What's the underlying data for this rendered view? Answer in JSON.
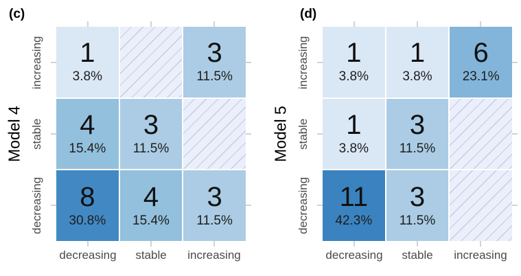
{
  "figure": {
    "background": "#ffffff",
    "number_color": "#111111",
    "axis_label_color": "#4a4a4a",
    "tick_color": "#d2d2d2",
    "empty_cell_color": "#eaeffb"
  },
  "color_scale": {
    "1": "#dae7f5",
    "3": "#abcce4",
    "4": "#93c0dc",
    "6": "#82b5d9",
    "8": "#4289c4",
    "11": "#3a83c0"
  },
  "chart_data": [
    {
      "type": "heatmap",
      "panel_label": "(c)",
      "ylabel": "Model 4",
      "x_categories": [
        "decreasing",
        "stable",
        "increasing"
      ],
      "y_categories_top_to_bottom": [
        "increasing",
        "stable",
        "decreasing"
      ],
      "legend_position": "none",
      "grid": "off",
      "cells": [
        [
          {
            "count": 1,
            "percent": "3.8%"
          },
          null,
          {
            "count": 3,
            "percent": "11.5%"
          }
        ],
        [
          {
            "count": 4,
            "percent": "15.4%"
          },
          {
            "count": 3,
            "percent": "11.5%"
          },
          null
        ],
        [
          {
            "count": 8,
            "percent": "30.8%"
          },
          {
            "count": 4,
            "percent": "15.4%"
          },
          {
            "count": 3,
            "percent": "11.5%"
          }
        ]
      ]
    },
    {
      "type": "heatmap",
      "panel_label": "(d)",
      "ylabel": "Model 5",
      "x_categories": [
        "decreasing",
        "stable",
        "increasing"
      ],
      "y_categories_top_to_bottom": [
        "increasing",
        "stable",
        "decreasing"
      ],
      "legend_position": "none",
      "grid": "off",
      "cells": [
        [
          {
            "count": 1,
            "percent": "3.8%"
          },
          {
            "count": 1,
            "percent": "3.8%"
          },
          {
            "count": 6,
            "percent": "23.1%"
          }
        ],
        [
          {
            "count": 1,
            "percent": "3.8%"
          },
          {
            "count": 3,
            "percent": "11.5%"
          },
          null
        ],
        [
          {
            "count": 11,
            "percent": "42.3%"
          },
          {
            "count": 3,
            "percent": "11.5%"
          },
          null
        ]
      ]
    }
  ]
}
